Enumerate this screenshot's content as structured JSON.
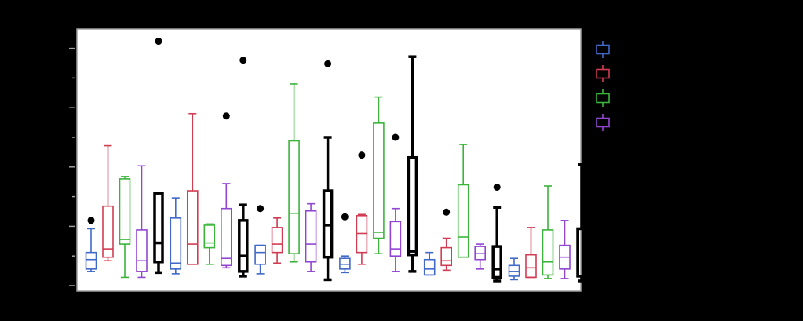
{
  "chart_data": {
    "type": "box",
    "title": "",
    "xlabel": "",
    "ylabel": "",
    "ylim": [
      0,
      205
    ],
    "yticks": [
      0,
      25,
      50,
      75,
      100,
      125,
      150,
      175,
      200
    ],
    "grid": false,
    "legend_position": "right",
    "groups": [
      "",
      "",
      "",
      "",
      "",
      ""
    ],
    "series": [
      {
        "color": "#4169c8",
        "stroke": "thin",
        "boxes": [
          {
            "min": 12,
            "q1": 14,
            "median": 22,
            "q3": 28,
            "max": 48,
            "outliers": [
              55
            ]
          },
          {
            "min": 10,
            "q1": 14,
            "median": 19,
            "q3": 57,
            "max": 74,
            "outliers": []
          },
          {
            "min": 10,
            "q1": 18,
            "median": 28,
            "q3": 34,
            "max": 34,
            "outliers": [
              65
            ]
          },
          {
            "min": 11,
            "q1": 14,
            "median": 18,
            "q3": 23,
            "max": 25,
            "outliers": [
              58
            ]
          },
          {
            "min": 9,
            "q1": 9,
            "median": 14,
            "q3": 22,
            "max": 28,
            "outliers": []
          },
          {
            "min": 5,
            "q1": 8,
            "median": 12,
            "q3": 17,
            "max": 23,
            "outliers": []
          }
        ]
      },
      {
        "color": "#d03c52",
        "stroke": "thin",
        "boxes": [
          {
            "min": 21,
            "q1": 24,
            "median": 31,
            "q3": 67,
            "max": 118,
            "outliers": []
          },
          {
            "min": 18,
            "q1": 18,
            "median": 35,
            "q3": 80,
            "max": 145,
            "outliers": []
          },
          {
            "min": 19,
            "q1": 28,
            "median": 35,
            "q3": 49,
            "max": 57,
            "outliers": []
          },
          {
            "min": 18,
            "q1": 28,
            "median": 44,
            "q3": 59,
            "max": 60,
            "outliers": [
              110
            ]
          },
          {
            "min": 13,
            "q1": 17,
            "median": 21,
            "q3": 32,
            "max": 40,
            "outliers": [
              62
            ]
          },
          {
            "min": 7,
            "q1": 7,
            "median": 15,
            "q3": 26,
            "max": 49,
            "outliers": []
          }
        ]
      },
      {
        "color": "#3cb43c",
        "stroke": "thin",
        "boxes": [
          {
            "min": 7,
            "q1": 35,
            "median": 39,
            "q3": 90,
            "max": 92,
            "outliers": []
          },
          {
            "min": 18,
            "q1": 32,
            "median": 36,
            "q3": 51,
            "max": 52,
            "outliers": []
          },
          {
            "min": 20,
            "q1": 27,
            "median": 61,
            "q3": 122,
            "max": 170,
            "outliers": []
          },
          {
            "min": 27,
            "q1": 40,
            "median": 45,
            "q3": 137,
            "max": 159,
            "outliers": []
          },
          {
            "min": 24,
            "q1": 24,
            "median": 41,
            "q3": 85,
            "max": 119,
            "outliers": []
          },
          {
            "min": 6,
            "q1": 9,
            "median": 20,
            "q3": 47,
            "max": 84,
            "outliers": []
          }
        ]
      },
      {
        "color": "#9146d2",
        "stroke": "thin",
        "boxes": [
          {
            "min": 7,
            "q1": 12,
            "median": 21,
            "q3": 47,
            "max": 101,
            "outliers": []
          },
          {
            "min": 15,
            "q1": 17,
            "median": 23,
            "q3": 65,
            "max": 86,
            "outliers": [
              143
            ]
          },
          {
            "min": 12,
            "q1": 20,
            "median": 35,
            "q3": 63,
            "max": 69,
            "outliers": []
          },
          {
            "min": 12,
            "q1": 25,
            "median": 31,
            "q3": 54,
            "max": 65,
            "outliers": [
              125
            ]
          },
          {
            "min": 14,
            "q1": 22,
            "median": 27,
            "q3": 33,
            "max": 35,
            "outliers": []
          },
          {
            "min": 6,
            "q1": 14,
            "median": 24,
            "q3": 34,
            "max": 55,
            "outliers": []
          }
        ]
      },
      {
        "color": "#000000",
        "stroke": "thick",
        "boxes": [
          {
            "min": 11,
            "q1": 20,
            "median": 36,
            "q3": 78,
            "max": 78,
            "outliers": [
              206
            ]
          },
          {
            "min": 8,
            "q1": 12,
            "median": 25,
            "q3": 55,
            "max": 68,
            "outliers": [
              190
            ]
          },
          {
            "min": 5,
            "q1": 24,
            "median": 51,
            "q3": 80,
            "max": 125,
            "outliers": [
              187
            ]
          },
          {
            "min": 12,
            "q1": 26,
            "median": 29,
            "q3": 108,
            "max": 193,
            "outliers": []
          },
          {
            "min": 4,
            "q1": 7,
            "median": 14,
            "q3": 33,
            "max": 66,
            "outliers": [
              83
            ]
          },
          {
            "min": 4,
            "q1": 8,
            "median": 8,
            "q3": 48,
            "max": 102,
            "outliers": []
          }
        ]
      }
    ],
    "legend": [
      {
        "color": "#4169c8"
      },
      {
        "color": "#d03c52"
      },
      {
        "color": "#3cb43c"
      },
      {
        "color": "#9146d2"
      }
    ]
  }
}
